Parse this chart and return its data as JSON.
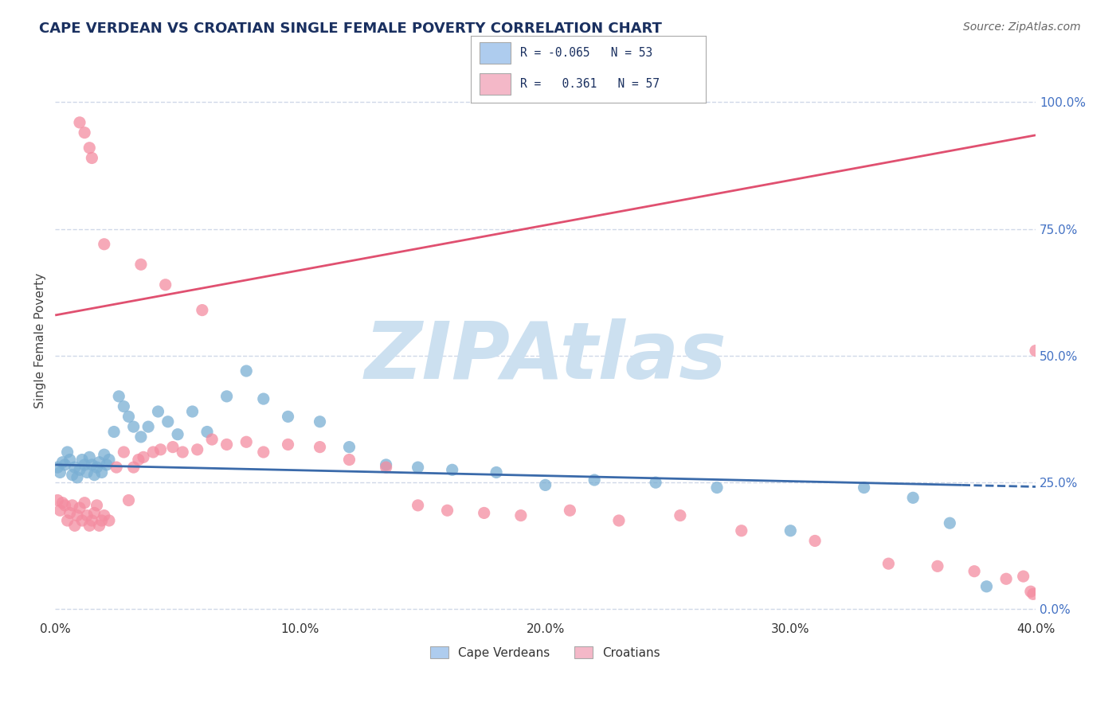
{
  "title": "CAPE VERDEAN VS CROATIAN SINGLE FEMALE POVERTY CORRELATION CHART",
  "source": "Source: ZipAtlas.com",
  "ylabel": "Single Female Poverty",
  "xlim": [
    0.0,
    0.4
  ],
  "ylim": [
    -0.02,
    1.08
  ],
  "xticks": [
    0.0,
    0.1,
    0.2,
    0.3,
    0.4
  ],
  "xtick_labels": [
    "0.0%",
    "10.0%",
    "20.0%",
    "30.0%",
    "40.0%"
  ],
  "yticks_right": [
    0.0,
    0.25,
    0.5,
    0.75,
    1.0
  ],
  "ytick_labels_right": [
    "0.0%",
    "25.0%",
    "50.0%",
    "75.0%",
    "100.0%"
  ],
  "cape_verdean_color": "#7aafd4",
  "croatian_color": "#f48ca0",
  "trendline_cv_color": "#3a6aaa",
  "trendline_hr_color": "#e05070",
  "watermark": "ZIPAtlas",
  "watermark_color": "#cce0f0",
  "background_color": "#ffffff",
  "grid_color": "#d0d8e8",
  "legend_cv_color": "#aeccee",
  "legend_hr_color": "#f4b8c8",
  "cv_trendline_x0": 0.0,
  "cv_trendline_y0": 0.285,
  "cv_trendline_x1": 0.37,
  "cv_trendline_y1": 0.245,
  "cv_trendline_dash_x0": 0.37,
  "cv_trendline_dash_x1": 0.4,
  "hr_trendline_x0": 0.0,
  "hr_trendline_y0": 0.58,
  "hr_trendline_x1": 0.4,
  "hr_trendline_y1": 0.935,
  "cv_x": [
    0.001,
    0.002,
    0.003,
    0.004,
    0.005,
    0.006,
    0.007,
    0.008,
    0.009,
    0.01,
    0.011,
    0.012,
    0.013,
    0.014,
    0.015,
    0.016,
    0.017,
    0.018,
    0.019,
    0.02,
    0.021,
    0.022,
    0.024,
    0.026,
    0.028,
    0.03,
    0.032,
    0.035,
    0.038,
    0.042,
    0.046,
    0.05,
    0.056,
    0.062,
    0.07,
    0.078,
    0.085,
    0.095,
    0.108,
    0.12,
    0.135,
    0.148,
    0.162,
    0.18,
    0.2,
    0.22,
    0.245,
    0.27,
    0.3,
    0.33,
    0.35,
    0.365,
    0.38
  ],
  "cv_y": [
    0.28,
    0.27,
    0.29,
    0.285,
    0.31,
    0.295,
    0.265,
    0.28,
    0.26,
    0.275,
    0.295,
    0.285,
    0.27,
    0.3,
    0.285,
    0.265,
    0.28,
    0.29,
    0.27,
    0.305,
    0.285,
    0.295,
    0.35,
    0.42,
    0.4,
    0.38,
    0.36,
    0.34,
    0.36,
    0.39,
    0.37,
    0.345,
    0.39,
    0.35,
    0.42,
    0.47,
    0.415,
    0.38,
    0.37,
    0.32,
    0.285,
    0.28,
    0.275,
    0.27,
    0.245,
    0.255,
    0.25,
    0.24,
    0.155,
    0.24,
    0.22,
    0.17,
    0.045
  ],
  "hr_x": [
    0.001,
    0.002,
    0.003,
    0.004,
    0.005,
    0.006,
    0.007,
    0.008,
    0.009,
    0.01,
    0.011,
    0.012,
    0.013,
    0.014,
    0.015,
    0.016,
    0.017,
    0.018,
    0.019,
    0.02,
    0.022,
    0.025,
    0.028,
    0.03,
    0.032,
    0.034,
    0.036,
    0.04,
    0.043,
    0.048,
    0.052,
    0.058,
    0.064,
    0.07,
    0.078,
    0.085,
    0.095,
    0.108,
    0.12,
    0.135,
    0.148,
    0.16,
    0.175,
    0.19,
    0.21,
    0.23,
    0.255,
    0.28,
    0.31,
    0.34,
    0.36,
    0.375,
    0.388,
    0.395,
    0.398,
    0.399,
    0.4
  ],
  "hr_y": [
    0.215,
    0.195,
    0.21,
    0.205,
    0.175,
    0.19,
    0.205,
    0.165,
    0.185,
    0.2,
    0.175,
    0.21,
    0.185,
    0.165,
    0.175,
    0.19,
    0.205,
    0.165,
    0.175,
    0.185,
    0.175,
    0.28,
    0.31,
    0.215,
    0.28,
    0.295,
    0.3,
    0.31,
    0.315,
    0.32,
    0.31,
    0.315,
    0.335,
    0.325,
    0.33,
    0.31,
    0.325,
    0.32,
    0.295,
    0.28,
    0.205,
    0.195,
    0.19,
    0.185,
    0.195,
    0.175,
    0.185,
    0.155,
    0.135,
    0.09,
    0.085,
    0.075,
    0.06,
    0.065,
    0.035,
    0.03,
    0.51
  ],
  "hr_top_x": [
    0.01,
    0.012,
    0.014,
    0.015,
    0.02,
    0.035,
    0.045,
    0.06
  ],
  "hr_top_y": [
    0.96,
    0.94,
    0.91,
    0.89,
    0.72,
    0.68,
    0.64,
    0.59
  ]
}
